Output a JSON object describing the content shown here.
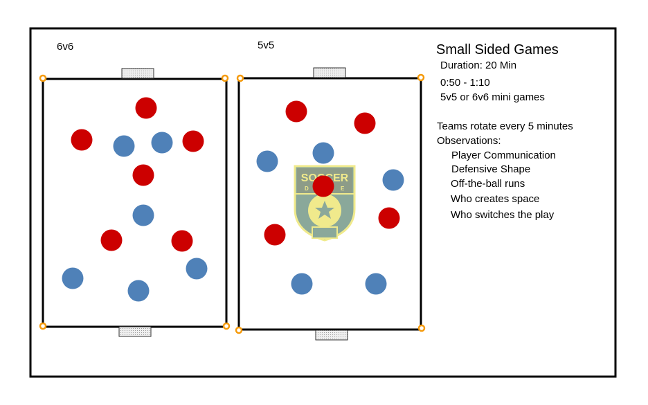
{
  "fields": [
    {
      "label": "6v6"
    },
    {
      "label": "5v5"
    }
  ],
  "info": {
    "title": "Small Sided Games",
    "duration": "Duration: 20 Min",
    "time": "0:50 - 1:10",
    "format": "5v5 or 6v6 mini games",
    "rotation": "Teams rotate every 5 minutes",
    "observations_label": "Observations:",
    "observations": [
      "Player Communication",
      "Defensive Shape",
      "Off-the-ball runs",
      "Who creates space",
      "Who switches the play"
    ]
  },
  "logo": {
    "text_top": "SOCCER",
    "text_left": "D",
    "text_right": "E"
  },
  "colors": {
    "team_red": "#cc0000",
    "team_blue": "#4f81b8",
    "cone": "#f59a0b",
    "logo_bg": "#8aa89a",
    "logo_fg": "#f0ea8c"
  },
  "icons": {
    "cone": "cone-icon",
    "goal": "goal-icon",
    "player": "player-icon"
  }
}
